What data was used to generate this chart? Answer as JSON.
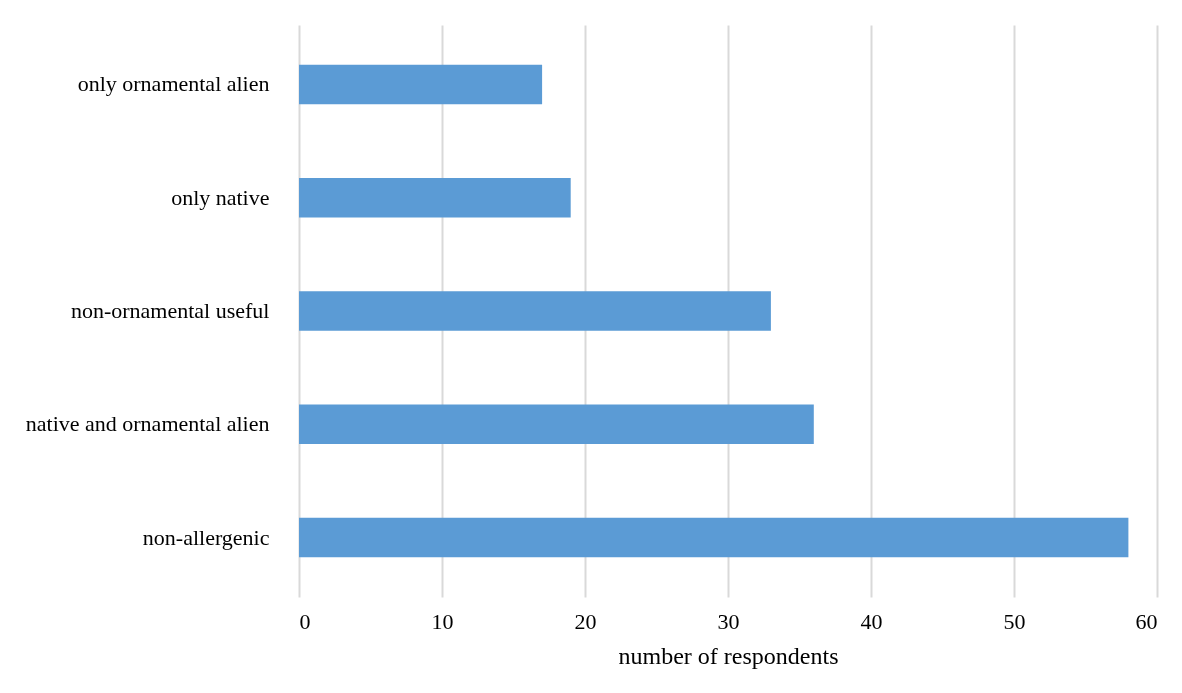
{
  "chart_data": {
    "type": "bar",
    "orientation": "horizontal",
    "xlabel": "number of respondents",
    "categories": [
      "only ornamental alien",
      "only native",
      "non-ornamental useful",
      "native and ornamental alien",
      "non-allergenic"
    ],
    "values": [
      17,
      19,
      33,
      36,
      58
    ],
    "color": "#5b9bd5",
    "xlim": [
      0,
      60
    ],
    "xticks": [
      0,
      10,
      20,
      30,
      40,
      50,
      60
    ],
    "grid": "x"
  }
}
